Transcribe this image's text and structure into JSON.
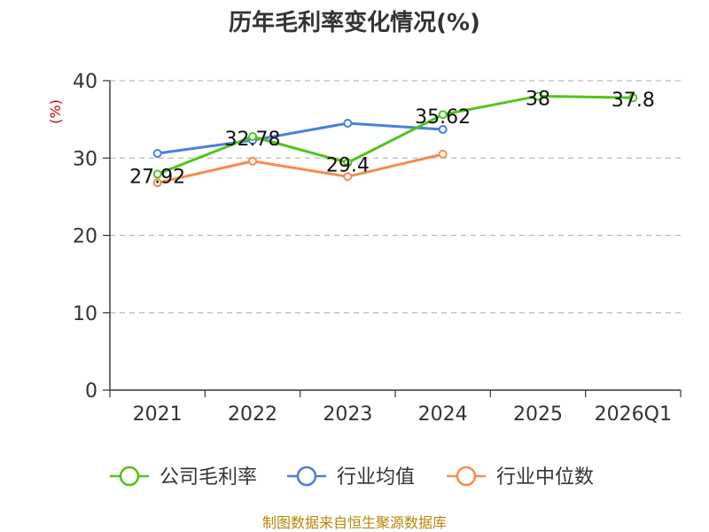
{
  "chart_data": {
    "type": "line",
    "title": "历年毛利率变化情况(%)",
    "ylabel": "(%)",
    "categories": [
      "2021",
      "2022",
      "2023",
      "2024",
      "2025",
      "2026Q1"
    ],
    "ylim": [
      0,
      40
    ],
    "yticks": [
      "0",
      "10",
      "20",
      "30",
      "40"
    ],
    "grid": true,
    "legend_position": "bottom",
    "series": [
      {
        "name": "公司毛利率",
        "color": "#52c41a",
        "values": [
          27.92,
          32.78,
          29.4,
          35.62,
          38,
          37.8
        ],
        "labels": [
          "27.92",
          "32.78",
          "29.4",
          "35.62",
          "38",
          "37.8"
        ]
      },
      {
        "name": "行业均值",
        "color": "#4a7fd8",
        "values": [
          30.6,
          32.3,
          34.5,
          33.7,
          null,
          null
        ]
      },
      {
        "name": "行业中位数",
        "color": "#f58c4e",
        "values": [
          26.8,
          29.6,
          27.6,
          30.5,
          null,
          null
        ]
      }
    ]
  },
  "footer": {
    "source": "制图数据来自恒生聚源数据库"
  }
}
